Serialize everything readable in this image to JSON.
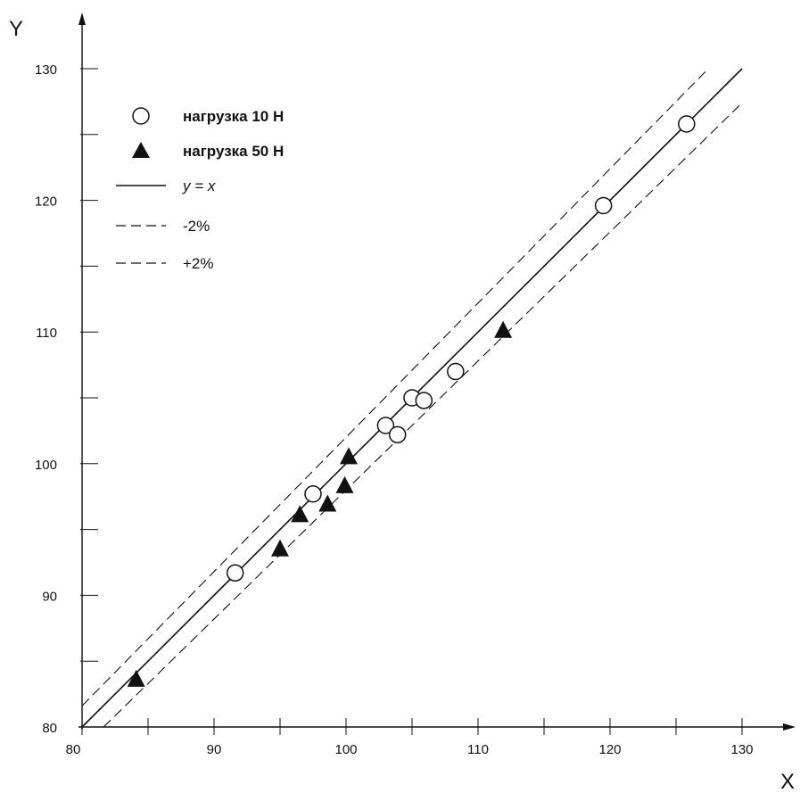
{
  "chart_data": {
    "type": "scatter",
    "xlabel": "X",
    "ylabel": "Y",
    "xlim": [
      80,
      130
    ],
    "ylim": [
      80,
      130
    ],
    "x_ticks": [
      80,
      90,
      100,
      110,
      120,
      130
    ],
    "y_ticks": [
      80,
      90,
      100,
      110,
      120,
      130
    ],
    "grid": false,
    "legend_position": "top-left",
    "series": [
      {
        "name": "нагрузка 10 Н",
        "marker": "circle-open",
        "points": [
          {
            "x": 91.6,
            "y": 91.7
          },
          {
            "x": 97.5,
            "y": 97.7
          },
          {
            "x": 103.0,
            "y": 102.9
          },
          {
            "x": 103.9,
            "y": 102.2
          },
          {
            "x": 105.0,
            "y": 105.0
          },
          {
            "x": 105.9,
            "y": 104.8
          },
          {
            "x": 108.3,
            "y": 107.0
          },
          {
            "x": 119.5,
            "y": 119.6
          },
          {
            "x": 125.8,
            "y": 125.8
          }
        ]
      },
      {
        "name": "нагрузка 50 Н",
        "marker": "triangle-filled",
        "points": [
          {
            "x": 84.1,
            "y": 83.6
          },
          {
            "x": 95.0,
            "y": 93.5
          },
          {
            "x": 96.5,
            "y": 96.1
          },
          {
            "x": 98.6,
            "y": 96.9
          },
          {
            "x": 99.9,
            "y": 98.3
          },
          {
            "x": 100.2,
            "y": 100.5
          },
          {
            "x": 111.9,
            "y": 110.1
          }
        ]
      }
    ],
    "lines": [
      {
        "name": "y = x",
        "style": "solid",
        "factor": 1.0
      },
      {
        "name": "-2%",
        "style": "dashed",
        "factor": 0.98
      },
      {
        "name": "+2%",
        "style": "dashed",
        "factor": 1.02
      }
    ]
  }
}
